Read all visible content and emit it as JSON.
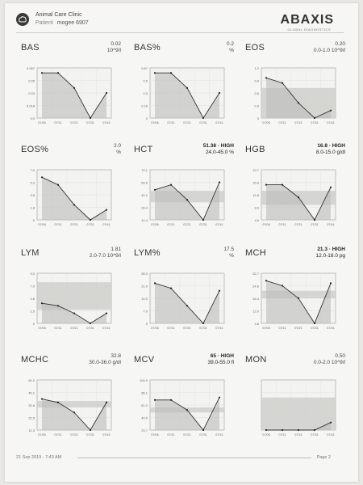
{
  "header": {
    "clinic": "Animal Care Clinic",
    "patient_label": "Patient",
    "patient_name": "mogee 6907",
    "brand": "ABAXIS",
    "brand_sub": "GLOBAL DIAGNOSTICS"
  },
  "footer": {
    "date": "21 Sep 2019 - 7:43 AM",
    "page": "Page 2"
  },
  "x_ticks": [
    "07/06",
    "07/11",
    "07/21",
    "07/31",
    "07/41"
  ],
  "panels": [
    {
      "name": "BAS",
      "value": "0.02",
      "range": "10^9/l",
      "high": false,
      "yticks": [
        "0.067",
        "0.05",
        "0.03",
        "0.018",
        "0.0"
      ],
      "band": null,
      "series": [
        0.9,
        0.9,
        0.6,
        0,
        0.5
      ]
    },
    {
      "name": "BAS%",
      "value": "0.2",
      "range": "%",
      "high": false,
      "yticks": [
        "0.67",
        "0.5",
        "0.3",
        "0.18",
        "0"
      ],
      "band": null,
      "series": [
        0.9,
        0.9,
        0.6,
        0,
        0.5
      ]
    },
    {
      "name": "EOS",
      "value": "0.20",
      "range": "0.0-1.0 10^9/l",
      "high": false,
      "yticks": [
        "1.2",
        "0.9",
        "0.6",
        "0.3",
        "0"
      ],
      "band": [
        0,
        0.6
      ],
      "series": [
        0.8,
        0.7,
        0.3,
        0,
        0.15
      ]
    },
    {
      "name": "EOS%",
      "value": "2.0",
      "range": "%",
      "high": false,
      "yticks": [
        "7.0",
        "5.3",
        "3.6",
        "1.8",
        "0"
      ],
      "band": null,
      "series": [
        0.85,
        0.7,
        0.3,
        0,
        0.2
      ]
    },
    {
      "name": "HCT",
      "value": "51.38 · HIGH",
      "range": "24.0-45.0 %",
      "high": true,
      "yticks": [
        "70.1",
        "53.6",
        "42.1",
        "28.4",
        "14.4"
      ],
      "band": [
        0.35,
        0.58
      ],
      "series": [
        0.6,
        0.7,
        0.4,
        0,
        0.75
      ]
    },
    {
      "name": "HGB",
      "value": "16.8 · HIGH",
      "range": "8.0-15.0 g/dl",
      "high": true,
      "yticks": [
        "19.7",
        "16.8",
        "12.8",
        "8.0",
        "4.6"
      ],
      "band": [
        0.3,
        0.58
      ],
      "series": [
        0.7,
        0.7,
        0.45,
        0,
        0.65
      ]
    },
    {
      "name": "LYM",
      "value": "1.81",
      "range": "2.0-7.0 10^9/l",
      "high": false,
      "yticks": [
        "9.0",
        "7.0",
        "4.6",
        "2.5",
        "0"
      ],
      "band": [
        0.27,
        0.82
      ],
      "series": [
        0.4,
        0.35,
        0.2,
        0,
        0.2
      ]
    },
    {
      "name": "LYM%",
      "value": "17.5",
      "range": "%",
      "high": false,
      "yticks": [
        "28.0",
        "21.0",
        "14.0",
        "7.0",
        "0"
      ],
      "band": null,
      "series": [
        0.8,
        0.7,
        0.35,
        0,
        0.65
      ]
    },
    {
      "name": "MCH",
      "value": "21.3 · HIGH",
      "range": "12.0-18.0 pg",
      "high": true,
      "yticks": [
        "32.7",
        "24.6",
        "18.4",
        "12.0",
        "4.8"
      ],
      "band": [
        0.5,
        0.65
      ],
      "series": [
        0.85,
        0.75,
        0.5,
        0,
        0.8
      ]
    },
    {
      "name": "MCHC",
      "value": "32.8",
      "range": "30.0-36.0 g/dl",
      "high": false,
      "yticks": [
        "60.2",
        "45.1",
        "33.8",
        "22.5",
        "11.3"
      ],
      "band": [
        0.45,
        0.58
      ],
      "series": [
        0.62,
        0.55,
        0.35,
        0,
        0.55
      ]
    },
    {
      "name": "MCV",
      "value": "65 · HIGH",
      "range": "39.0-55.0 fl",
      "high": true,
      "yticks": [
        "104.0",
        "85.1",
        "61.0",
        "40.0",
        "23.7"
      ],
      "band": [
        0.35,
        0.45
      ],
      "series": [
        0.6,
        0.6,
        0.4,
        0,
        0.65
      ]
    },
    {
      "name": "MON",
      "value": "0.50",
      "range": "0.0-2.0 10^9/l",
      "high": false,
      "yticks": [
        "",
        "",
        "",
        "",
        ""
      ],
      "band": [
        0,
        0.65
      ],
      "series": [
        0,
        0,
        0,
        0,
        0.15
      ]
    }
  ]
}
